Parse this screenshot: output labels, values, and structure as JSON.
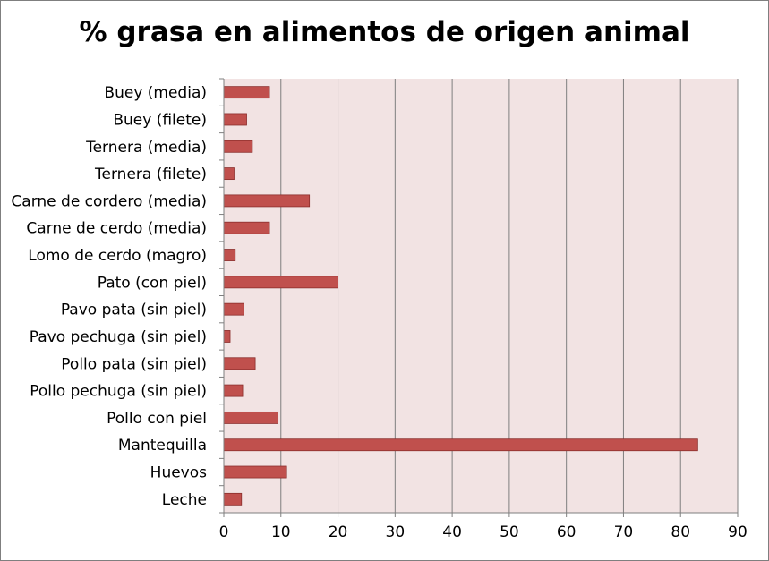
{
  "chart_data": {
    "type": "bar",
    "orientation": "horizontal",
    "title": "% grasa en alimentos de origen animal",
    "xlabel": "",
    "ylabel": "",
    "categories": [
      "Buey (media)",
      "Buey (filete)",
      "Ternera (media)",
      "Ternera (filete)",
      "Carne de cordero (media)",
      "Carne de cerdo (media)",
      "Lomo de cerdo (magro)",
      "Pato (con piel)",
      "Pavo pata (sin piel)",
      "Pavo pechuga (sin piel)",
      "Pollo pata (sin piel)",
      "Pollo pechuga (sin piel)",
      "Pollo con piel",
      "Mantequilla",
      "Huevos",
      "Leche"
    ],
    "values": [
      8,
      4,
      5,
      1.8,
      15,
      8,
      2,
      20,
      3.5,
      1.1,
      5.5,
      3.3,
      9.5,
      83,
      11,
      3.1
    ],
    "xlim": [
      0,
      90
    ],
    "xticks": [
      "0",
      "10",
      "20",
      "30",
      "40",
      "50",
      "60",
      "70",
      "80",
      "90"
    ],
    "grid": "vertical",
    "legend": "none",
    "colors": {
      "bar": "#c0504d",
      "bar_border": "#8b2e2c",
      "plot_bg": "#f2e3e3",
      "grid": "#7f7f7f"
    }
  }
}
